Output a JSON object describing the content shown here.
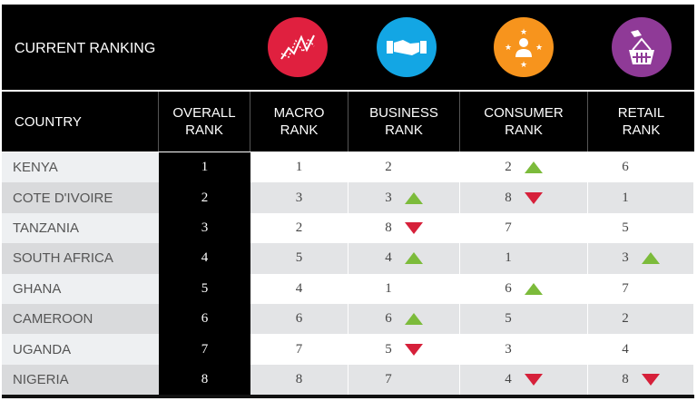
{
  "title": "CURRENT RANKING",
  "icons": [
    {
      "name": "macro-chart-icon",
      "color": "#e0203f"
    },
    {
      "name": "handshake-icon",
      "color": "#13a6e4"
    },
    {
      "name": "consumer-person-icon",
      "color": "#f7941d"
    },
    {
      "name": "retail-basket-icon",
      "color": "#8f3a97"
    }
  ],
  "colors": {
    "up": "#7cbb3b",
    "down": "#d6203a"
  },
  "headers": {
    "country": "COUNTRY",
    "overall": "OVERALL RANK",
    "macro": "MACRO RANK",
    "business": "BUSINESS RANK",
    "consumer": "CONSUMER RANK",
    "retail": "RETAIL RANK"
  },
  "rows": [
    {
      "country": "KENYA",
      "overall": "1",
      "macro": "1",
      "business": "2",
      "business_trend": "",
      "consumer": "2",
      "consumer_trend": "up",
      "retail": "6",
      "retail_trend": ""
    },
    {
      "country": "COTE D'IVOIRE",
      "overall": "2",
      "macro": "3",
      "business": "3",
      "business_trend": "up",
      "consumer": "8",
      "consumer_trend": "down",
      "retail": "1",
      "retail_trend": ""
    },
    {
      "country": "TANZANIA",
      "overall": "3",
      "macro": "2",
      "business": "8",
      "business_trend": "down",
      "consumer": "7",
      "consumer_trend": "",
      "retail": "5",
      "retail_trend": ""
    },
    {
      "country": "SOUTH AFRICA",
      "overall": "4",
      "macro": "5",
      "business": "4",
      "business_trend": "up",
      "consumer": "1",
      "consumer_trend": "",
      "retail": "3",
      "retail_trend": "up"
    },
    {
      "country": "GHANA",
      "overall": "5",
      "macro": "4",
      "business": "1",
      "business_trend": "",
      "consumer": "6",
      "consumer_trend": "up",
      "retail": "7",
      "retail_trend": ""
    },
    {
      "country": "CAMEROON",
      "overall": "6",
      "macro": "6",
      "business": "6",
      "business_trend": "up",
      "consumer": "5",
      "consumer_trend": "",
      "retail": "2",
      "retail_trend": ""
    },
    {
      "country": "UGANDA",
      "overall": "7",
      "macro": "7",
      "business": "5",
      "business_trend": "down",
      "consumer": "3",
      "consumer_trend": "",
      "retail": "4",
      "retail_trend": ""
    },
    {
      "country": "NIGERIA",
      "overall": "8",
      "macro": "8",
      "business": "7",
      "business_trend": "",
      "consumer": "4",
      "consumer_trend": "down",
      "retail": "8",
      "retail_trend": "down"
    }
  ]
}
